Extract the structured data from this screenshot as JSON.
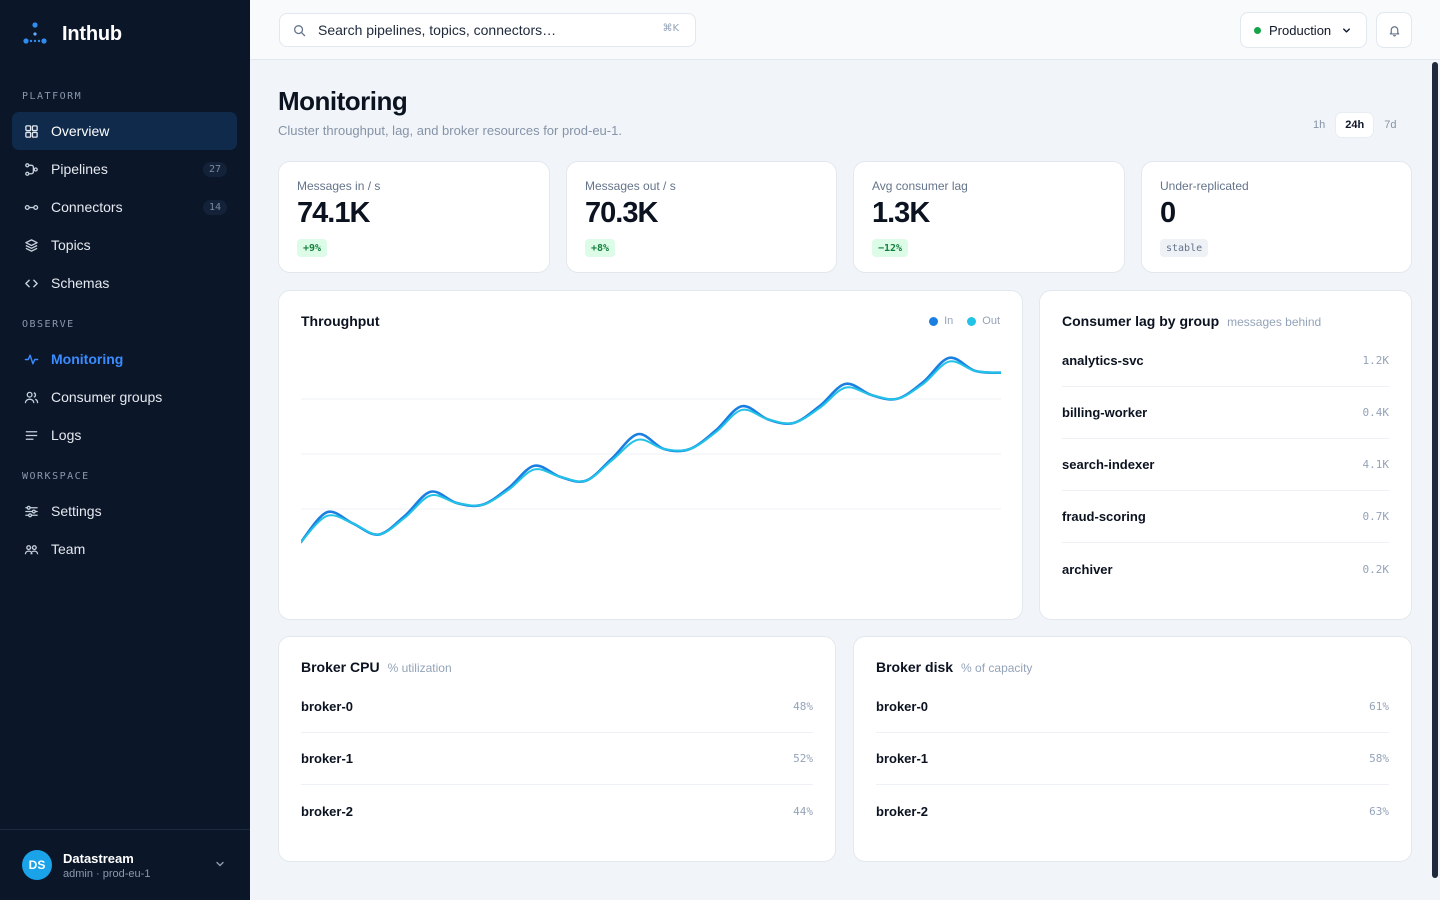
{
  "brand": {
    "name": "Inthub"
  },
  "sidebar": {
    "sections": [
      "PLATFORM",
      "OBSERVE",
      "WORKSPACE"
    ],
    "items": [
      {
        "label": "Overview",
        "icon": "grid-icon"
      },
      {
        "label": "Pipelines",
        "icon": "pipeline-icon",
        "count": "27"
      },
      {
        "label": "Connectors",
        "icon": "connector-icon",
        "count": "14"
      },
      {
        "label": "Topics",
        "icon": "layers-icon"
      },
      {
        "label": "Schemas",
        "icon": "code-icon"
      },
      {
        "label": "Monitoring",
        "icon": "activity-icon"
      },
      {
        "label": "Consumer groups",
        "icon": "users-icon"
      },
      {
        "label": "Logs",
        "icon": "lines-icon"
      },
      {
        "label": "Settings",
        "icon": "sliders-icon"
      },
      {
        "label": "Team",
        "icon": "team-icon"
      }
    ],
    "user": {
      "initials": "DS",
      "name": "Datastream",
      "role": "admin · prod-eu-1"
    }
  },
  "topbar": {
    "search_placeholder": "Search pipelines, topics, connectors…",
    "search_shortcut": "⌘K",
    "environment": "Production",
    "colors": {
      "environment_status": "#16a34a"
    }
  },
  "page": {
    "title": "Monitoring",
    "subtitle": "Cluster throughput, lag, and broker resources for prod-eu-1.",
    "ranges": [
      "1h",
      "24h",
      "7d"
    ],
    "active_range": "24h"
  },
  "stats": [
    {
      "label": "Messages in / s",
      "value": "74.1K",
      "badge": "+9%"
    },
    {
      "label": "Messages out / s",
      "value": "70.3K",
      "badge": "+8%"
    },
    {
      "label": "Avg consumer lag",
      "value": "1.3K",
      "badge": "−12%"
    },
    {
      "label": "Under-replicated",
      "value": "0",
      "badge": "stable"
    }
  ],
  "throughput": {
    "title": "Throughput",
    "legend": [
      "In",
      "Out"
    ],
    "colors": {
      "in": "#1a7fe0",
      "out": "#22c3e6"
    }
  },
  "chart_data": {
    "type": "line",
    "title": "Throughput",
    "series": [
      {
        "name": "In",
        "values": [
          0,
          0.16,
          0.1,
          0.04,
          0.14,
          0.27,
          0.21,
          0.2,
          0.29,
          0.41,
          0.35,
          0.33,
          0.45,
          0.58,
          0.5,
          0.5,
          0.6,
          0.73,
          0.66,
          0.64,
          0.73,
          0.85,
          0.79,
          0.77,
          0.86,
          0.99,
          0.92,
          0.91
        ]
      },
      {
        "name": "Out",
        "values": [
          0,
          0.14,
          0.1,
          0.04,
          0.13,
          0.25,
          0.21,
          0.2,
          0.28,
          0.39,
          0.35,
          0.33,
          0.44,
          0.55,
          0.5,
          0.5,
          0.59,
          0.71,
          0.66,
          0.64,
          0.72,
          0.83,
          0.79,
          0.77,
          0.85,
          0.97,
          0.92,
          0.91
        ]
      }
    ],
    "grid": true
  },
  "consumer_lag": {
    "title": "Consumer lag by group",
    "subtitle": "messages behind",
    "rows": [
      {
        "name": "analytics-svc",
        "value": "1.2K"
      },
      {
        "name": "billing-worker",
        "value": "0.4K"
      },
      {
        "name": "search-indexer",
        "value": "4.1K"
      },
      {
        "name": "fraud-scoring",
        "value": "0.7K"
      },
      {
        "name": "archiver",
        "value": "0.2K"
      }
    ]
  },
  "broker_cpu": {
    "title": "Broker CPU",
    "subtitle": "% utilization",
    "rows": [
      {
        "name": "broker-0",
        "value": "48%"
      },
      {
        "name": "broker-1",
        "value": "52%"
      },
      {
        "name": "broker-2",
        "value": "44%"
      }
    ]
  },
  "broker_disk": {
    "title": "Broker disk",
    "subtitle": "% of capacity",
    "rows": [
      {
        "name": "broker-0",
        "value": "61%"
      },
      {
        "name": "broker-1",
        "value": "58%"
      },
      {
        "name": "broker-2",
        "value": "63%"
      }
    ]
  }
}
